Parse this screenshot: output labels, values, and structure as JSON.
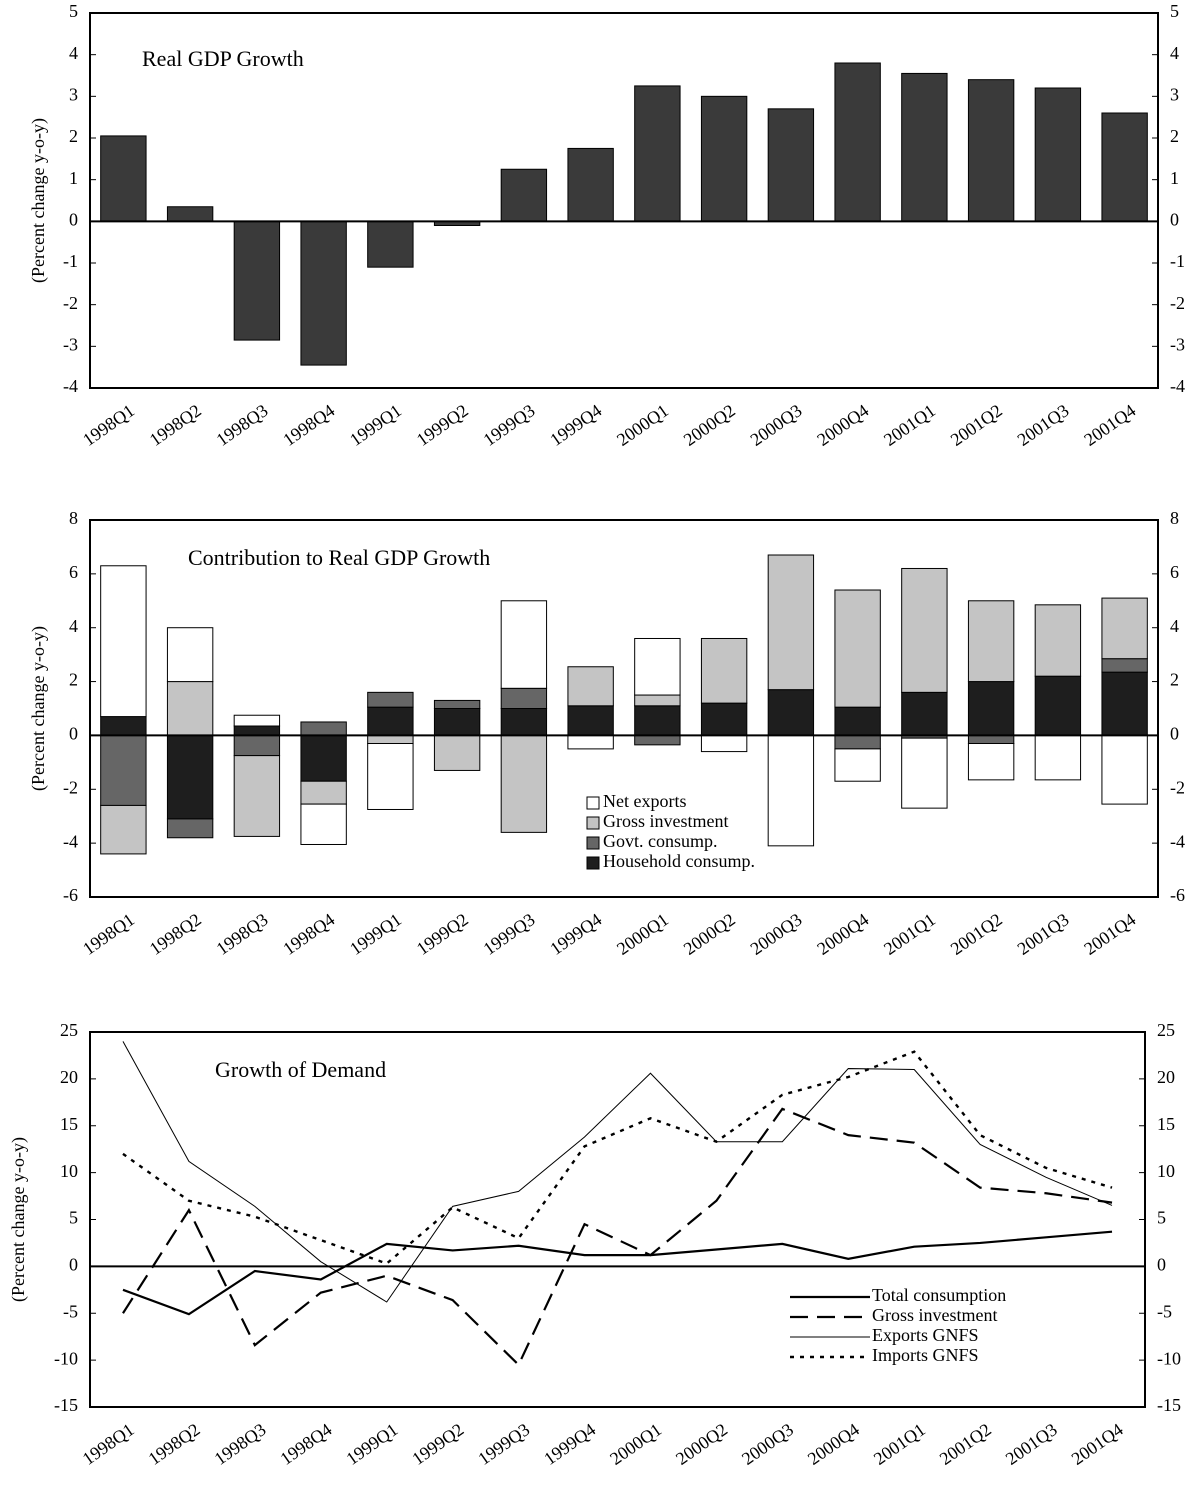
{
  "chart_data": [
    {
      "type": "bar",
      "title": "Real GDP Growth",
      "y_label": "(Percent change y-o-y)",
      "categories": [
        "1998Q1",
        "1998Q2",
        "1998Q3",
        "1998Q4",
        "1999Q1",
        "1999Q2",
        "1999Q3",
        "1999Q4",
        "2000Q1",
        "2000Q2",
        "2000Q3",
        "2000Q4",
        "2001Q1",
        "2001Q2",
        "2001Q3",
        "2001Q4"
      ],
      "values": [
        2.05,
        0.35,
        -2.85,
        -3.45,
        -1.1,
        -0.1,
        1.25,
        1.75,
        3.25,
        3.0,
        2.7,
        3.8,
        3.55,
        3.4,
        3.2,
        2.6
      ],
      "color": "#3a3a3a",
      "ylim": [
        -4,
        5
      ],
      "yticks": [
        -4,
        -3,
        -2,
        -1,
        0,
        1,
        2,
        3,
        4,
        5
      ],
      "y2lim": [
        -4,
        5
      ],
      "y2ticks": [
        -4,
        -3,
        -2,
        -1,
        0,
        1,
        2,
        3,
        4,
        5
      ]
    },
    {
      "type": "stacked_bar",
      "title": "Contribution to Real GDP Growth",
      "y_label": "(Percent change y-o-y)",
      "categories": [
        "1998Q1",
        "1998Q2",
        "1998Q3",
        "1998Q4",
        "1999Q1",
        "1999Q2",
        "1999Q3",
        "1999Q4",
        "2000Q1",
        "2000Q2",
        "2000Q3",
        "2000Q4",
        "2001Q1",
        "2001Q2",
        "2001Q3",
        "2001Q4"
      ],
      "series": [
        {
          "name": "Net exports",
          "color": "#ffffff",
          "values": [
            5.6,
            2.0,
            0.4,
            -1.5,
            -2.45,
            0,
            3.25,
            -0.5,
            2.1,
            -0.6,
            -4.1,
            -1.2,
            -2.6,
            -1.35,
            -1.65,
            -2.55
          ]
        },
        {
          "name": "Gross investment",
          "color": "#c4c4c4",
          "values": [
            -1.8,
            2.0,
            -3.0,
            -0.85,
            -0.3,
            -1.3,
            -3.6,
            1.45,
            0.4,
            2.4,
            5.0,
            4.35,
            4.6,
            3.0,
            2.65,
            2.25
          ]
        },
        {
          "name": "Govt. consump.",
          "color": "#666666",
          "values": [
            -2.6,
            -0.7,
            -0.75,
            0.5,
            0.55,
            0.3,
            0.75,
            0,
            -0.35,
            0,
            0,
            -0.5,
            -0.1,
            -0.3,
            0,
            0.5
          ]
        },
        {
          "name": "Household consump.",
          "color": "#1e1e1e",
          "values": [
            0.7,
            -3.1,
            0.35,
            -1.7,
            1.05,
            1.0,
            1.0,
            1.1,
            1.1,
            1.2,
            1.7,
            1.05,
            1.6,
            2.0,
            2.2,
            2.35
          ]
        }
      ],
      "legend": "lower center",
      "ylim": [
        -6,
        8
      ],
      "yticks": [
        -6,
        -4,
        -2,
        0,
        2,
        4,
        6,
        8
      ],
      "y2lim": [
        -6,
        8
      ],
      "y2ticks": [
        -6,
        -4,
        -2,
        0,
        2,
        4,
        6,
        8
      ]
    },
    {
      "type": "line",
      "title": "Growth of Demand",
      "y_label": "(Percent change y-o-y)",
      "categories": [
        "1998Q1",
        "1998Q2",
        "1998Q3",
        "1998Q4",
        "1999Q1",
        "1999Q2",
        "1999Q3",
        "1999Q4",
        "2000Q1",
        "2000Q2",
        "2000Q3",
        "2000Q4",
        "2001Q1",
        "2001Q2",
        "2001Q3",
        "2001Q4"
      ],
      "series": [
        {
          "name": "Total consumption",
          "color": "#000000",
          "style": "solid",
          "values": [
            -2.5,
            -5.1,
            -0.5,
            -1.4,
            2.4,
            1.7,
            2.2,
            1.2,
            1.2,
            1.8,
            2.4,
            0.8,
            2.1,
            2.5,
            3.1,
            3.7
          ]
        },
        {
          "name": "Gross investment",
          "color": "#000000",
          "style": "dashed",
          "values": [
            -5,
            6,
            -8.4,
            -2.8,
            -1,
            -3.6,
            -10.5,
            4.5,
            1.2,
            7,
            16.8,
            14,
            13.2,
            8.4,
            7.8,
            6.8
          ]
        },
        {
          "name": "Exports GNFS",
          "color": "#000000",
          "style": "thin",
          "values": [
            24,
            11.2,
            6.4,
            0.5,
            -3.8,
            6.4,
            8,
            13.8,
            20.6,
            13.3,
            13.3,
            21.1,
            21,
            13,
            9.5,
            6.5
          ]
        },
        {
          "name": "Imports GNFS",
          "color": "#000000",
          "style": "dotted",
          "values": [
            12,
            7,
            5.3,
            2.8,
            0.3,
            6.3,
            3,
            12.8,
            15.8,
            13.3,
            18.3,
            20.2,
            22.9,
            14,
            10.5,
            8.4
          ]
        }
      ],
      "legend": "lower right",
      "ylim": [
        -15,
        25
      ],
      "yticks": [
        -15,
        -10,
        -5,
        0,
        5,
        10,
        15,
        20,
        25
      ],
      "y2lim": [
        -15,
        25
      ],
      "y2ticks": [
        -15,
        -10,
        -5,
        0,
        5,
        10,
        15,
        20,
        25
      ]
    }
  ]
}
